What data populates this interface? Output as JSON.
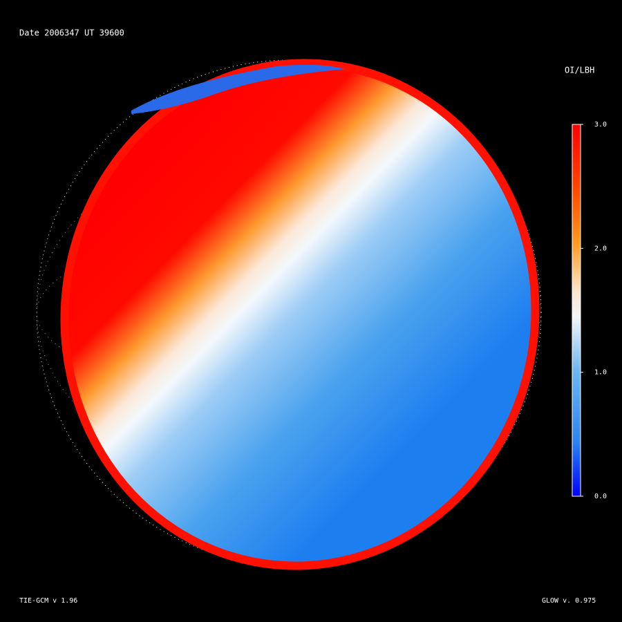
{
  "header": {
    "date": "Date 2006347",
    "ut": "UT 39600"
  },
  "colorbar": {
    "title": "OI/LBH",
    "lim": [
      0,
      3
    ],
    "ticks": [
      {
        "value": 3,
        "label": "3.0"
      },
      {
        "value": 2,
        "label": "2.0"
      },
      {
        "value": 1,
        "label": "1.0"
      },
      {
        "value": 0,
        "label": "0.0"
      }
    ]
  },
  "footer": {
    "left": "TIE-GCM v 1.96",
    "right": "GLOW v. 0.975"
  }
}
